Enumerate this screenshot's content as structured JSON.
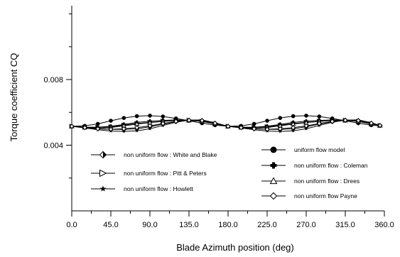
{
  "chart_data": {
    "type": "line",
    "xlabel": "Blade Azimuth position (deg)",
    "ylabel": "Torque  coefficient CQ",
    "xlim": [
      0,
      360
    ],
    "ylim": [
      0.0,
      0.0125
    ],
    "x_ticks": [
      "0.0",
      "45.0",
      "90.0",
      "135.0",
      "180.0",
      "225.0",
      "270.0",
      "315.0",
      "360.0"
    ],
    "y_ticks": [
      "0.004",
      "0.008"
    ],
    "y_tick_values": [
      0.004,
      0.008
    ],
    "grid": false,
    "legend_placement": "bottom",
    "series": [
      {
        "name": "non uniform flow : White and Blake",
        "marker": "diamond-half",
        "x": [
          0,
          15,
          30,
          45,
          60,
          75,
          90,
          105,
          120,
          135,
          150,
          165,
          180,
          195,
          210,
          225,
          240,
          255,
          270,
          285,
          300,
          315,
          330,
          345,
          355
        ],
        "values": [
          0.00515,
          0.00508,
          0.00501,
          0.00496,
          0.00496,
          0.005,
          0.00512,
          0.00528,
          0.00543,
          0.00552,
          0.00551,
          0.00534,
          0.00515,
          0.00508,
          0.00501,
          0.00496,
          0.00496,
          0.005,
          0.00512,
          0.00528,
          0.00543,
          0.00552,
          0.00551,
          0.00534,
          0.0052
        ]
      },
      {
        "name": "non uniform flow : Pitt & Peters",
        "marker": "triangle-right-open",
        "x": [
          0,
          15,
          30,
          45,
          60,
          75,
          90,
          105,
          120,
          135,
          150,
          165,
          180,
          195,
          210,
          225,
          240,
          255,
          270,
          285,
          300,
          315,
          330,
          345,
          355
        ],
        "values": [
          0.00515,
          0.0051,
          0.00508,
          0.00512,
          0.00522,
          0.00532,
          0.00539,
          0.00546,
          0.00551,
          0.00552,
          0.00545,
          0.0053,
          0.00515,
          0.0051,
          0.00508,
          0.00512,
          0.00522,
          0.00532,
          0.00539,
          0.00546,
          0.00551,
          0.00552,
          0.00545,
          0.0053,
          0.0052
        ]
      },
      {
        "name": "non uniform flow : Howlett",
        "marker": "star",
        "x": [
          0,
          15,
          30,
          45,
          60,
          75,
          90,
          105,
          120,
          135,
          150,
          165,
          180,
          195,
          210,
          225,
          240,
          255,
          270,
          285,
          300,
          315,
          330,
          345,
          355
        ],
        "values": [
          0.00515,
          0.00505,
          0.00494,
          0.00486,
          0.00484,
          0.00488,
          0.005,
          0.0052,
          0.0054,
          0.00553,
          0.00554,
          0.00537,
          0.00515,
          0.00505,
          0.00494,
          0.00486,
          0.00484,
          0.00488,
          0.005,
          0.0052,
          0.0054,
          0.00553,
          0.00554,
          0.00537,
          0.0052
        ]
      },
      {
        "name": "uniform flow model",
        "marker": "circle",
        "x": [
          0,
          15,
          30,
          45,
          60,
          75,
          90,
          105,
          120,
          135,
          150,
          165,
          180,
          195,
          210,
          225,
          240,
          255,
          270,
          285,
          300,
          315,
          330,
          345,
          355
        ],
        "values": [
          0.00515,
          0.00518,
          0.0053,
          0.00549,
          0.00566,
          0.00577,
          0.0058,
          0.00575,
          0.00563,
          0.00549,
          0.00534,
          0.00522,
          0.00515,
          0.00518,
          0.0053,
          0.00549,
          0.00566,
          0.00577,
          0.0058,
          0.00575,
          0.00563,
          0.00549,
          0.00534,
          0.00522,
          0.00518
        ]
      },
      {
        "name": "non uniform flow : Coleman",
        "marker": "plus",
        "x": [
          0,
          15,
          30,
          45,
          60,
          75,
          90,
          105,
          120,
          135,
          150,
          165,
          180,
          195,
          210,
          225,
          240,
          255,
          270,
          285,
          300,
          315,
          330,
          345,
          355
        ],
        "values": [
          0.00515,
          0.0051,
          0.00509,
          0.00515,
          0.00527,
          0.00539,
          0.00546,
          0.00551,
          0.00554,
          0.00553,
          0.00545,
          0.0053,
          0.00515,
          0.0051,
          0.00509,
          0.00515,
          0.00527,
          0.00539,
          0.00546,
          0.00551,
          0.00554,
          0.00553,
          0.00545,
          0.0053,
          0.0052
        ]
      },
      {
        "name": "non uniform flow : Drees",
        "marker": "triangle-up-open",
        "x": [
          0,
          15,
          30,
          45,
          60,
          75,
          90,
          105,
          120,
          135,
          150,
          165,
          180,
          195,
          210,
          225,
          240,
          255,
          270,
          285,
          300,
          315,
          330,
          345,
          355
        ],
        "values": [
          0.00515,
          0.00508,
          0.00505,
          0.00508,
          0.00518,
          0.00529,
          0.00537,
          0.00545,
          0.0055,
          0.00551,
          0.00545,
          0.0053,
          0.00515,
          0.00508,
          0.00505,
          0.00508,
          0.00518,
          0.00529,
          0.00537,
          0.00545,
          0.0055,
          0.00551,
          0.00545,
          0.0053,
          0.0052
        ]
      },
      {
        "name": "non uniform flow Payne",
        "marker": "diamond-open",
        "x": [
          0,
          15,
          30,
          45,
          60,
          75,
          90,
          105,
          120,
          135,
          150,
          165,
          180,
          195,
          210,
          225,
          240,
          255,
          270,
          285,
          300,
          315,
          330,
          345,
          355
        ],
        "values": [
          0.00515,
          0.00507,
          0.005,
          0.00497,
          0.005,
          0.00507,
          0.00518,
          0.00532,
          0.00545,
          0.00552,
          0.0055,
          0.00534,
          0.00515,
          0.00507,
          0.005,
          0.00497,
          0.005,
          0.00507,
          0.00518,
          0.00532,
          0.00545,
          0.00552,
          0.0055,
          0.00534,
          0.0052
        ]
      }
    ],
    "legend_left": [
      0,
      1,
      2
    ],
    "legend_right": [
      3,
      4,
      5,
      6
    ]
  }
}
